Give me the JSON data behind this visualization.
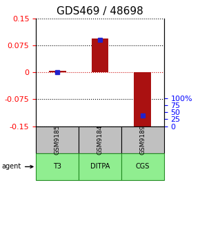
{
  "title": "GDS469 / 48698",
  "samples": [
    "GSM9185",
    "GSM9184",
    "GSM9189"
  ],
  "agents": [
    "T3",
    "DITPA",
    "CGS"
  ],
  "log_ratios": [
    0.005,
    0.095,
    -0.155
  ],
  "percentile_ranks": [
    0.5,
    0.8,
    0.1
  ],
  "ylim_left": [
    -0.15,
    0.15
  ],
  "ylim_right": [
    0,
    1.0
  ],
  "yticks_left": [
    -0.15,
    -0.075,
    0,
    0.075,
    0.15
  ],
  "ytick_labels_left": [
    "-0.15",
    "-0.075",
    "0",
    "0.075",
    "0.15"
  ],
  "yticks_right": [
    0,
    0.25,
    0.5,
    0.75,
    1.0
  ],
  "ytick_labels_right": [
    "0",
    "25",
    "50",
    "75",
    "100%"
  ],
  "bar_color": "#aa1111",
  "dot_color": "#2222cc",
  "grid_color": "#000000",
  "zero_line_color": "#cc0000",
  "sample_box_color": "#c0c0c0",
  "agent_box_color": "#90ee90",
  "agent_box_border": "#228B22",
  "title_fontsize": 11,
  "axis_fontsize": 8,
  "label_fontsize": 8,
  "bar_width": 0.4
}
